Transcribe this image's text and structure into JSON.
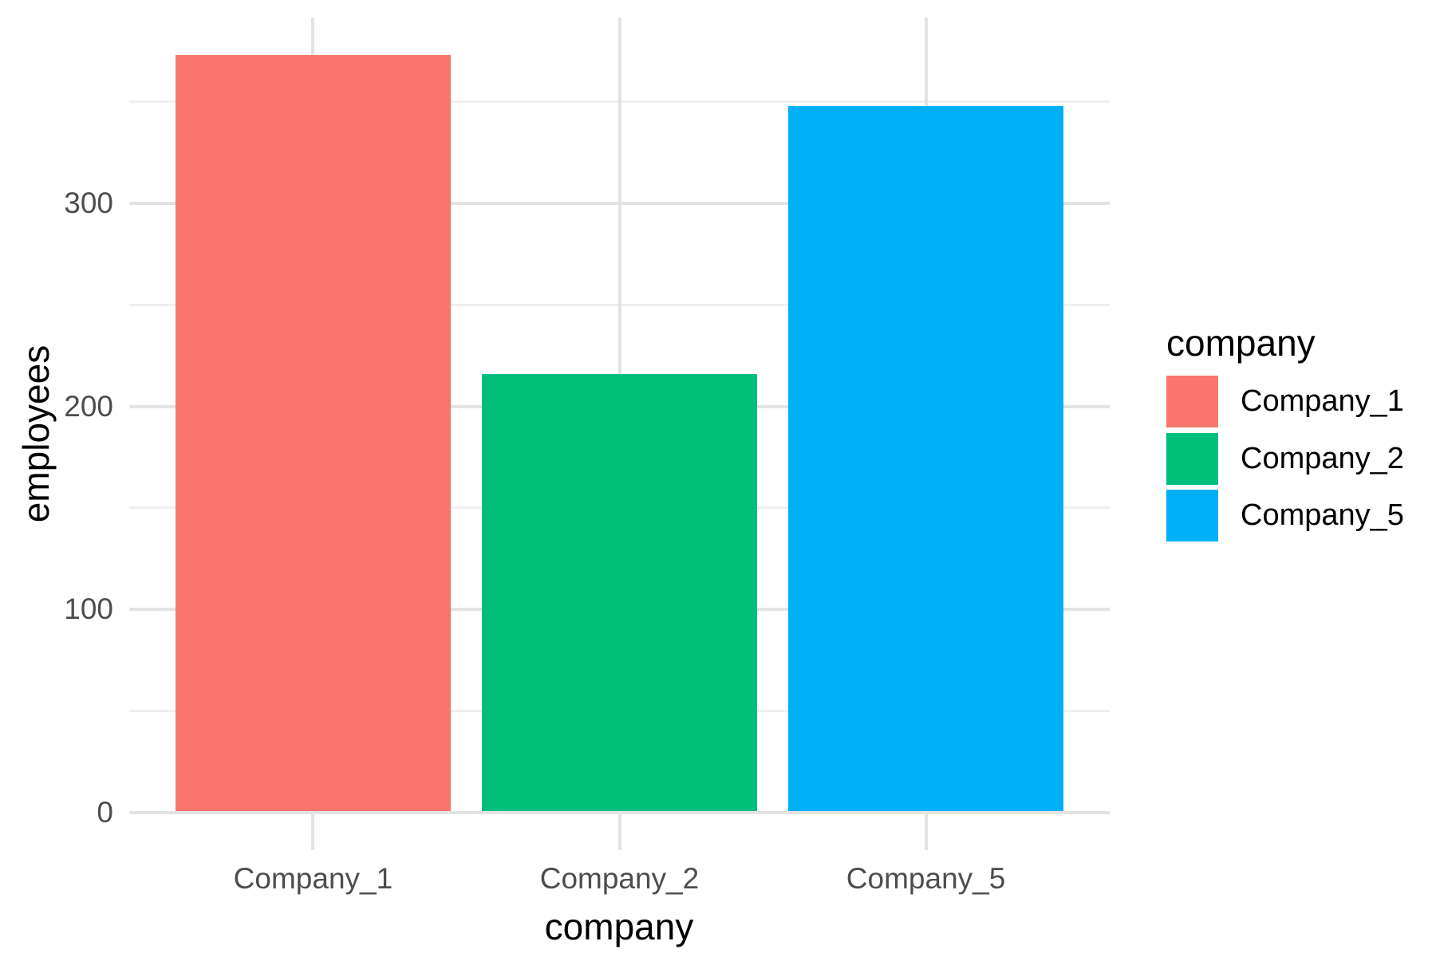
{
  "chart_data": {
    "type": "bar",
    "title": "",
    "xlabel": "company",
    "ylabel": "employees",
    "categories": [
      "Company_1",
      "Company_2",
      "Company_5"
    ],
    "values": [
      373,
      216,
      348
    ],
    "bar_colors": [
      "#F8766D",
      "#00BF7D",
      "#00B0F6"
    ],
    "ylim": [
      0,
      392
    ],
    "yticks": [
      0,
      100,
      200,
      300
    ],
    "yticks_minor": [
      50,
      150,
      250,
      350
    ],
    "grid": "on",
    "legend_position": "right",
    "legend": {
      "title": "company",
      "entries": [
        {
          "label": "Company_1",
          "color": "#F8766D"
        },
        {
          "label": "Company_2",
          "color": "#00BF7D"
        },
        {
          "label": "Company_5",
          "color": "#00B0F6"
        }
      ]
    },
    "colors": {
      "grid_major": "#E3E3E3",
      "grid_minor": "#EFEFEF",
      "tick_label": "#4D4D4D",
      "title_text": "#000000",
      "background": "#FFFFFF"
    }
  }
}
